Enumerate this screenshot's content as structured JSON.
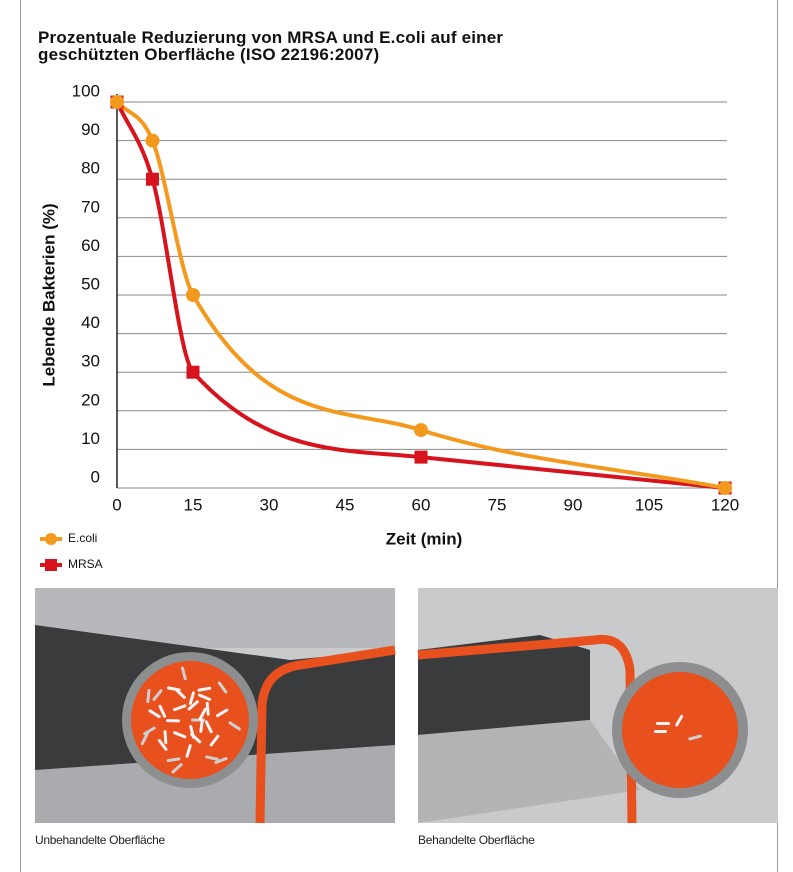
{
  "chart_data": {
    "type": "line",
    "title": "Prozentuale Reduzierung von MRSA und E.coli auf einer\ngeschützten Oberfläche (ISO 22196:2007)",
    "x_label": "Zeit (min)",
    "y_label": "Lebende Bakterien (%)",
    "x": [
      0,
      7,
      15,
      60,
      120
    ],
    "series": [
      {
        "name": "E.coli",
        "color": "#f39a1e",
        "marker": "circle",
        "values": [
          100,
          90,
          50,
          15,
          0
        ]
      },
      {
        "name": "MRSA",
        "color": "#d7141e",
        "marker": "square",
        "values": [
          100,
          80,
          30,
          8,
          0
        ]
      }
    ],
    "xlim": [
      0,
      120
    ],
    "xticks": [
      0,
      15,
      30,
      45,
      60,
      75,
      90,
      105,
      120
    ],
    "ylim": [
      0,
      100
    ],
    "yticks": [
      0,
      10,
      20,
      30,
      40,
      50,
      60,
      70,
      80,
      90,
      100
    ],
    "grid": true,
    "legend": "bottom-left"
  },
  "panels": [
    {
      "caption": "Unbehandelte Oberfläche"
    },
    {
      "caption": "Behandelte Oberfläche"
    }
  ]
}
